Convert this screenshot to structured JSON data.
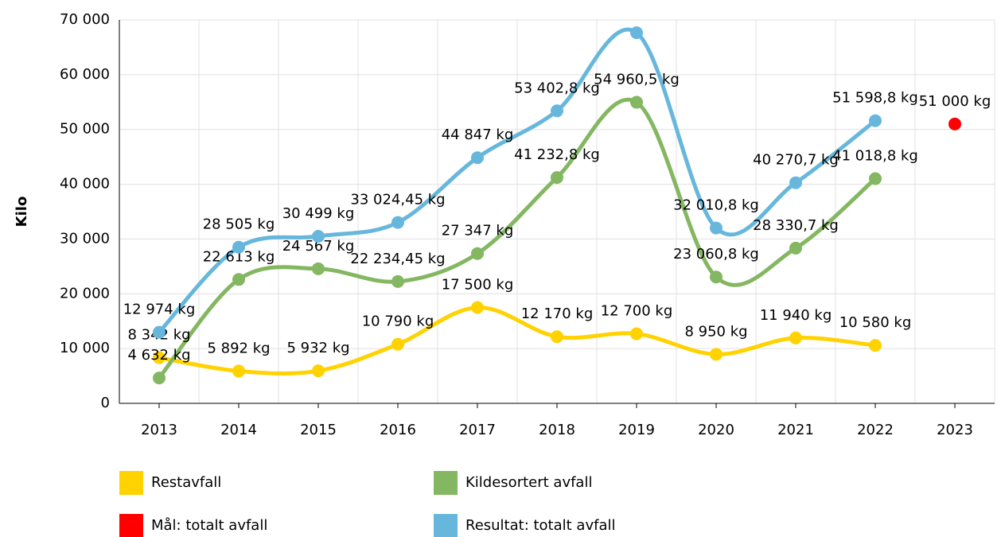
{
  "chart_data": {
    "type": "line",
    "y_label": "Kilo",
    "categories": [
      "2013",
      "2014",
      "2015",
      "2016",
      "2017",
      "2018",
      "2019",
      "2020",
      "2021",
      "2022",
      "2023"
    ],
    "ylim": [
      0,
      70000
    ],
    "yticks": [
      0,
      {
        "value": 10000,
        "label": "10 000"
      },
      {
        "value": 20000,
        "label": "20 000"
      },
      {
        "value": 30000,
        "label": "30 000"
      },
      {
        "value": 40000,
        "label": "40 000"
      },
      {
        "value": 50000,
        "label": "50 000"
      },
      {
        "value": 60000,
        "label": "60 000"
      },
      {
        "value": 70000,
        "label": "70 000"
      }
    ],
    "grid": true,
    "legend": "bottom",
    "series": [
      {
        "name": "Restavfall",
        "color": "#ffd200",
        "values": [
          8342,
          5892,
          5932,
          10790,
          17500,
          12170,
          12700,
          8950,
          11940,
          10580,
          null
        ],
        "value_labels": [
          "8 342 kg",
          "5 892 kg",
          "5 932 kg",
          "10 790 kg",
          "17 500 kg",
          "12 170 kg",
          "12 700 kg",
          "8 950 kg",
          "11 940 kg",
          "10 580 kg",
          null
        ]
      },
      {
        "name": "Kildesortert avfall",
        "color": "#84b761",
        "values": [
          4632,
          22613,
          24567,
          22234.45,
          27347,
          41232.8,
          54960.5,
          23060.8,
          28330.7,
          41018.8,
          null
        ],
        "value_labels": [
          "4 632 kg",
          "22 613 kg",
          "24 567 kg",
          "22 234,45 kg",
          "27 347 kg",
          "41 232,8 kg",
          "54 960,5 kg",
          "23 060,8 kg",
          "28 330,7 kg",
          "41 018,8 kg",
          null
        ]
      },
      {
        "name": "Mål: totalt avfall",
        "color": "#ff0000",
        "values": [
          null,
          null,
          null,
          null,
          null,
          null,
          null,
          null,
          null,
          null,
          51000
        ],
        "value_labels": [
          null,
          null,
          null,
          null,
          null,
          null,
          null,
          null,
          null,
          null,
          "51 000 kg"
        ]
      },
      {
        "name": "Resultat: totalt avfall",
        "color": "#67b7dc",
        "values": [
          12974,
          28505,
          30499,
          33024.45,
          44847,
          53402.8,
          67660.5,
          32010.8,
          40270.7,
          51598.8,
          null
        ],
        "value_labels": [
          "12 974 kg",
          "28 505 kg",
          "30 499 kg",
          "33 024,45 kg",
          "44 847 kg",
          "53 402,8 kg",
          null,
          "32 010,8 kg",
          "40 270,7 kg",
          "51 598,8 kg",
          null
        ]
      }
    ]
  }
}
